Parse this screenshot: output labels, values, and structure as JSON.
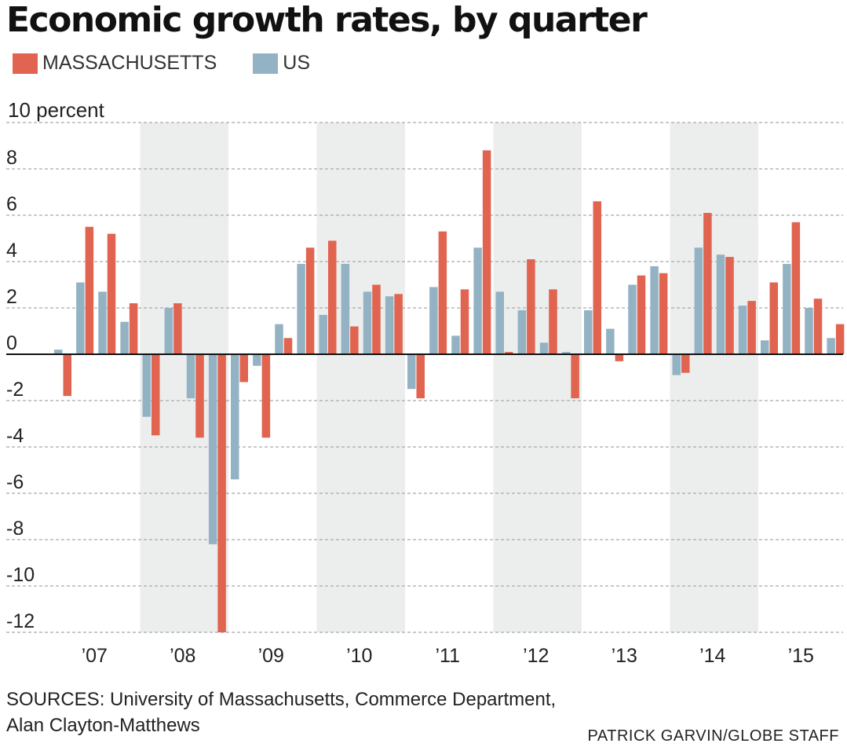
{
  "title": "Economic growth rates, by quarter",
  "legend": [
    {
      "label": "MASSACHUSETTS",
      "color": "#e0644f"
    },
    {
      "label": "US",
      "color": "#93b3c4"
    }
  ],
  "unit_label": "10 percent",
  "sources_line1": "SOURCES: University of Massachusetts, Commerce Department,",
  "sources_line2": "Alan Clayton-Matthews",
  "credit": "PATRICK GARVIN/GLOBE STAFF",
  "chart_data": {
    "type": "bar",
    "ylim": [
      -12,
      10
    ],
    "yticks": [
      8,
      6,
      4,
      2,
      0,
      -2,
      -4,
      -6,
      -8,
      -10,
      -12
    ],
    "ytick_labels": [
      "8",
      "6",
      "4",
      "2",
      "0",
      "-2",
      "-4",
      "-6",
      "-8",
      "-10",
      "-12"
    ],
    "grid": true,
    "legend_position": "top-left",
    "years": [
      "’07",
      "’08",
      "’09",
      "’10",
      "’11",
      "’12",
      "’13",
      "’14",
      "’15"
    ],
    "shaded_years": [
      "’08",
      "’10",
      "’12",
      "’14"
    ],
    "categories": [
      "2007 Q1",
      "2007 Q2",
      "2007 Q3",
      "2007 Q4",
      "2008 Q1",
      "2008 Q2",
      "2008 Q3",
      "2008 Q4",
      "2009 Q1",
      "2009 Q2",
      "2009 Q3",
      "2009 Q4",
      "2010 Q1",
      "2010 Q2",
      "2010 Q3",
      "2010 Q4",
      "2011 Q1",
      "2011 Q2",
      "2011 Q3",
      "2011 Q4",
      "2012 Q1",
      "2012 Q2",
      "2012 Q3",
      "2012 Q4",
      "2013 Q1",
      "2013 Q2",
      "2013 Q3",
      "2013 Q4",
      "2014 Q1",
      "2014 Q2",
      "2014 Q3",
      "2014 Q4",
      "2015 Q1",
      "2015 Q2",
      "2015 Q3",
      "2015 Q4"
    ],
    "series": [
      {
        "name": "US",
        "color": "#93b3c4",
        "values": [
          0.2,
          3.1,
          2.7,
          1.4,
          -2.7,
          2.0,
          -1.9,
          -8.2,
          -5.4,
          -0.5,
          1.3,
          3.9,
          1.7,
          3.9,
          2.7,
          2.5,
          -1.5,
          2.9,
          0.8,
          4.6,
          2.7,
          1.9,
          0.5,
          0.1,
          1.9,
          1.1,
          3.0,
          3.8,
          -0.9,
          4.6,
          4.3,
          2.1,
          0.6,
          3.9,
          2.0,
          0.7
        ]
      },
      {
        "name": "MASSACHUSETTS",
        "color": "#e0644f",
        "values": [
          -1.8,
          5.5,
          5.2,
          2.2,
          -3.5,
          2.2,
          -3.6,
          -12.0,
          -1.2,
          -3.6,
          0.7,
          4.6,
          4.9,
          1.2,
          3.0,
          2.6,
          -1.9,
          5.3,
          2.8,
          8.8,
          0.1,
          4.1,
          2.8,
          -1.9,
          6.6,
          -0.3,
          3.4,
          3.5,
          -0.8,
          6.1,
          4.2,
          2.3,
          3.1,
          5.7,
          2.4,
          1.3
        ]
      }
    ]
  }
}
